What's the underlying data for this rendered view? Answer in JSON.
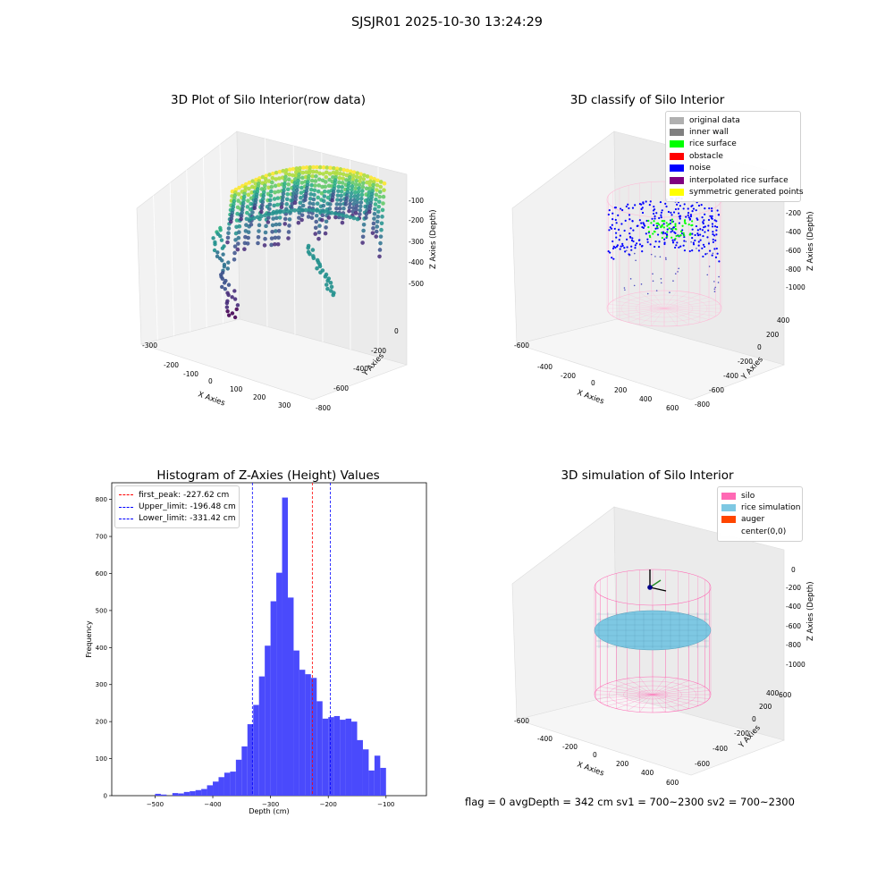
{
  "suptitle": "SJSJR01 2025-10-30 13:24:29",
  "colors": {
    "hist_bar": "#4a4afc",
    "first_peak": "#ff0000",
    "limits": "#0000ff",
    "silo": "#ff69b4",
    "rice": "#7ec8e3",
    "auger": "#ff4500",
    "blue_noise": "#0000ff",
    "rice_surface": "#00ff00"
  },
  "chart_data": [
    {
      "type": "scatter",
      "panel": "3d",
      "title": "3D Plot of Silo Interior(row data)",
      "xlabel": "X Axies",
      "ylabel": "Y Axies",
      "zlabel": "Z Axies (Depth)",
      "x_ticks": [
        "-300",
        "-200",
        "-100",
        "0",
        "100",
        "200",
        "300"
      ],
      "y_ticks": [
        "-800",
        "-600",
        "-400",
        "-200",
        "0"
      ],
      "z_ticks": [
        "-500",
        "-400",
        "-300",
        "-200",
        "-100"
      ],
      "colormap": "viridis"
    },
    {
      "type": "scatter",
      "panel": "3d",
      "title": "3D classify of Silo Interior",
      "xlabel": "X Axies",
      "ylabel": "Y Axies",
      "zlabel": "Z Axies (Depth)",
      "x_ticks": [
        "-600",
        "-400",
        "-200",
        "0",
        "200",
        "400",
        "600"
      ],
      "y_ticks": [
        "-800",
        "-600",
        "-400",
        "-200",
        "0",
        "200",
        "400"
      ],
      "z_ticks": [
        "-1000",
        "-800",
        "-600",
        "-400",
        "-200",
        "0"
      ],
      "legend_position": "top-right",
      "legend": [
        {
          "label": "original data",
          "color": "#b0b0b0"
        },
        {
          "label": "inner wall",
          "color": "#808080"
        },
        {
          "label": "rice surface",
          "color": "#00ff00"
        },
        {
          "label": "obstacle",
          "color": "#ff0000"
        },
        {
          "label": "noise",
          "color": "#0000ff"
        },
        {
          "label": "interpolated rice surface",
          "color": "#800080"
        },
        {
          "label": "symmetric generated points",
          "color": "#ffff00"
        }
      ]
    },
    {
      "type": "bar",
      "title": "Histogram of Z-Axies (Height) Values",
      "xlabel": "Depth (cm)",
      "ylabel": "Frequency",
      "xlim": [
        -575,
        -30
      ],
      "ylim": [
        0,
        845
      ],
      "x_ticks": [
        -500,
        -400,
        -300,
        -200,
        -100
      ],
      "y_ticks": [
        0,
        100,
        200,
        300,
        400,
        500,
        600,
        700,
        800
      ],
      "bin_start": -550,
      "bin_width": 10,
      "values": [
        0,
        0,
        0,
        0,
        0,
        5,
        3,
        0,
        7,
        6,
        10,
        12,
        15,
        18,
        28,
        38,
        50,
        62,
        65,
        97,
        133,
        193,
        245,
        322,
        405,
        525,
        602,
        805,
        535,
        392,
        340,
        328,
        318,
        255,
        208,
        212,
        215,
        205,
        208,
        200,
        150,
        125,
        68,
        108,
        75
      ],
      "vlines": [
        {
          "label": "first_peak: -227.62 cm",
          "x": -227.62,
          "color": "#ff0000"
        },
        {
          "label": "Upper_limit: -196.48 cm",
          "x": -196.48,
          "color": "#0000ff"
        },
        {
          "label": "Lower_limit: -331.42 cm",
          "x": -331.42,
          "color": "#0000ff"
        }
      ],
      "legend_position": "top-left"
    },
    {
      "type": "scatter",
      "panel": "3d",
      "title": "3D simulation of Silo Interior",
      "xlabel": "X Axies",
      "ylabel": "Y Axies",
      "zlabel": "Z Axies (Depth)",
      "x_ticks": [
        "-600",
        "-400",
        "-200",
        "0",
        "200",
        "400",
        "600"
      ],
      "y_ticks": [
        "-600",
        "-400",
        "-200",
        "0",
        "200",
        "400",
        "600"
      ],
      "z_ticks": [
        "-1000",
        "-800",
        "-600",
        "-400",
        "-200",
        "0"
      ],
      "legend_position": "top-right",
      "legend": [
        {
          "label": "silo",
          "color": "#ff69b4"
        },
        {
          "label": "rice simulation",
          "color": "#7ec8e3"
        },
        {
          "label": "auger",
          "color": "#ff4500"
        },
        {
          "label": "center(0,0)",
          "color": "#ffffff"
        }
      ]
    }
  ],
  "bottom_text": "flag = 0     avgDepth = 342 cm  sv1 = 700~2300  sv2 = 700~2300"
}
